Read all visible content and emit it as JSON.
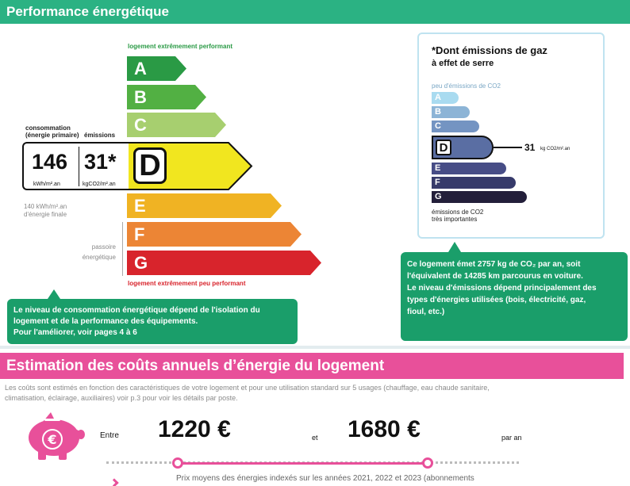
{
  "performance": {
    "title": "Performance énergétique",
    "scale_top": "logement extrêmement performant",
    "scale_bottom": "logement extrêmement peu performant",
    "classes": [
      {
        "letter": "A",
        "color": "#2a9a45"
      },
      {
        "letter": "B",
        "color": "#52b043"
      },
      {
        "letter": "C",
        "color": "#a7cf6f"
      },
      {
        "letter": "D",
        "color": "#f1e61f"
      },
      {
        "letter": "E",
        "color": "#f0b323"
      },
      {
        "letter": "F",
        "color": "#ec8535"
      },
      {
        "letter": "G",
        "color": "#d8242c"
      }
    ],
    "current_class": "D",
    "consumption_label_1": "consommation",
    "consumption_label_2": "(énergie primaire)",
    "emissions_label": "émissions",
    "consumption_value": "146",
    "consumption_unit": "kWh/m².an",
    "emissions_value": "31*",
    "emissions_unit": "kgCO2/m².an",
    "final_energy_1": "140 kWh/m².an",
    "final_energy_2": "d'énergie finale",
    "passoire_1": "passoire",
    "passoire_2": "énergétique",
    "note_lines": [
      "Le niveau de consommation énergétique dépend de l'isolation du",
      "logement et de la performance des équipements.",
      "Pour l'améliorer, voir pages 4 à 6"
    ]
  },
  "ghg": {
    "title_1": "*Dont émissions de gaz",
    "title_2": "à effet de serre",
    "scale_top": "peu d'émissions de CO2",
    "scale_bottom_1": "émissions de CO2",
    "scale_bottom_2": "très importantes",
    "classes": [
      {
        "letter": "A",
        "color": "#a9dbf0"
      },
      {
        "letter": "B",
        "color": "#8cb4d6"
      },
      {
        "letter": "C",
        "color": "#7494c2"
      },
      {
        "letter": "D",
        "color": "#5a6ea3"
      },
      {
        "letter": "E",
        "color": "#474d86"
      },
      {
        "letter": "F",
        "color": "#363a6a"
      },
      {
        "letter": "G",
        "color": "#231f3a"
      }
    ],
    "current_class": "D",
    "value": "31",
    "unit": "kg CO2/m².an",
    "note_lines": [
      "Ce logement émet 2757 kg de CO₂ par an, soit",
      "l'équivalent de 14285  km parcourus en voiture.",
      "Le niveau d'émissions dépend principalement des",
      "types d'énergies utilisées (bois, électricité, gaz,",
      "fioul, etc.)"
    ]
  },
  "costs": {
    "title": "Estimation des coûts annuels d’énergie du logement",
    "description_1": "Les coûts sont estimés en fonction des caractéristiques de votre logement et pour une utilisation standard sur 5 usages (chauffage, eau chaude sanitaire,",
    "description_2": "climatisation, éclairage, auxiliaires) voir p.3 pour voir les détails par poste.",
    "between_label": "Entre",
    "low_value": "1220 €",
    "and_label": "et",
    "high_value": "1680 €",
    "per_year": "par an",
    "prices_note": "Prix moyens des énergies indexés sur les années 2021, 2022 et 2023 (abonnements",
    "accent_color": "#e8509a"
  }
}
